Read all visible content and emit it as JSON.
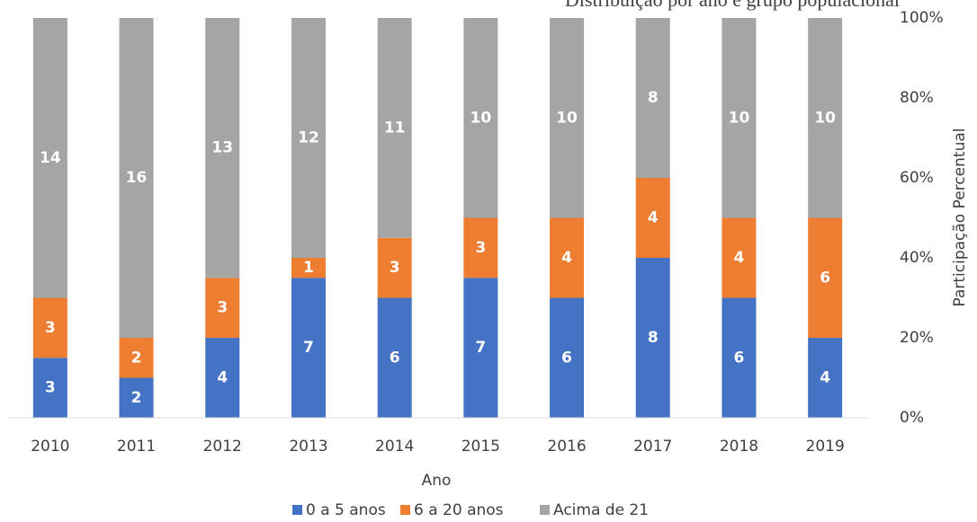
{
  "chart_data": {
    "type": "bar",
    "stacked": "percent",
    "title": "Distribuição por ano e grupo populacional",
    "xlabel": "Ano",
    "ylabel": "Participação Percentual",
    "categories": [
      "2010",
      "2011",
      "2012",
      "2013",
      "2014",
      "2015",
      "2016",
      "2017",
      "2018",
      "2019"
    ],
    "series": [
      {
        "name": "0 a 5 anos",
        "color": "#4472c4",
        "values": [
          3,
          2,
          4,
          7,
          6,
          7,
          6,
          8,
          6,
          4
        ]
      },
      {
        "name": "6 a 20 anos",
        "color": "#ed7d31",
        "values": [
          3,
          2,
          3,
          1,
          3,
          3,
          4,
          4,
          4,
          6
        ]
      },
      {
        "name": "Acima de 21",
        "color": "#a5a5a5",
        "values": [
          14,
          16,
          13,
          12,
          11,
          10,
          10,
          8,
          10,
          10
        ]
      }
    ],
    "ylim": [
      0,
      100
    ],
    "yticks": [
      {
        "value": 0,
        "label": "0%"
      },
      {
        "value": 20,
        "label": "20%"
      },
      {
        "value": 40,
        "label": "40%"
      },
      {
        "value": 60,
        "label": "60%"
      },
      {
        "value": 80,
        "label": "80%"
      },
      {
        "value": 100,
        "label": "100%"
      }
    ],
    "y_axis_side": "right",
    "grid": false,
    "legend": "bottom"
  }
}
